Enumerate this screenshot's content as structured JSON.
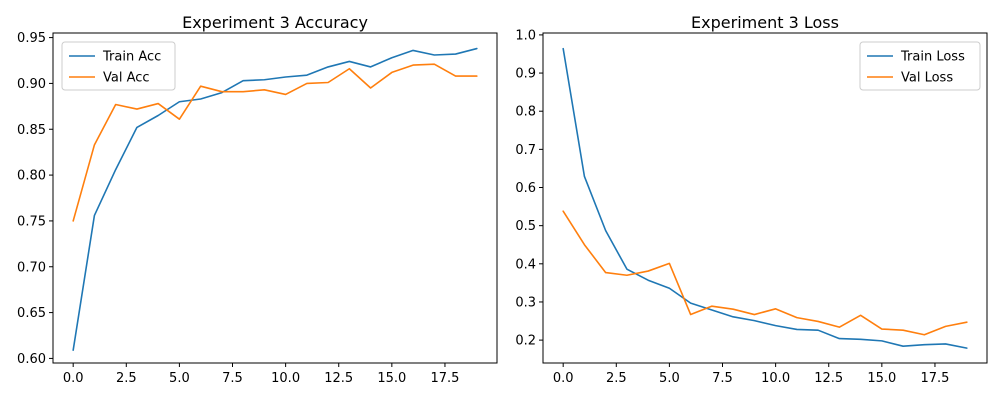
{
  "chart_data": [
    {
      "type": "line",
      "title": "Experiment 3 Accuracy",
      "xlabel": "",
      "ylabel": "",
      "x": [
        0,
        1,
        2,
        3,
        4,
        5,
        6,
        7,
        8,
        9,
        10,
        11,
        12,
        13,
        14,
        15,
        16,
        17,
        18,
        19
      ],
      "xlim": [
        -0.95,
        19.95
      ],
      "ylim": [
        0.595,
        0.955
      ],
      "xticks": [
        0,
        2.5,
        5,
        7.5,
        10,
        12.5,
        15,
        17.5
      ],
      "xtick_labels": [
        "0.0",
        "2.5",
        "5.0",
        "7.5",
        "10.0",
        "12.5",
        "15.0",
        "17.5"
      ],
      "yticks": [
        0.6,
        0.65,
        0.7,
        0.75,
        0.8,
        0.85,
        0.9,
        0.95
      ],
      "ytick_labels": [
        "0.60",
        "0.65",
        "0.70",
        "0.75",
        "0.80",
        "0.85",
        "0.90",
        "0.95"
      ],
      "grid": false,
      "legend_position": "top-left",
      "series": [
        {
          "name": "Train Acc",
          "color": "#1f77b4",
          "values": [
            0.609,
            0.756,
            0.806,
            0.852,
            0.865,
            0.88,
            0.883,
            0.89,
            0.903,
            0.904,
            0.907,
            0.909,
            0.918,
            0.924,
            0.918,
            0.928,
            0.936,
            0.931,
            0.932,
            0.938
          ]
        },
        {
          "name": "Val Acc",
          "color": "#ff7f0e",
          "values": [
            0.75,
            0.833,
            0.877,
            0.872,
            0.878,
            0.861,
            0.897,
            0.891,
            0.891,
            0.893,
            0.888,
            0.9,
            0.901,
            0.916,
            0.895,
            0.912,
            0.92,
            0.921,
            0.908,
            0.908
          ]
        }
      ]
    },
    {
      "type": "line",
      "title": "Experiment 3 Loss",
      "xlabel": "",
      "ylabel": "",
      "x": [
        0,
        1,
        2,
        3,
        4,
        5,
        6,
        7,
        8,
        9,
        10,
        11,
        12,
        13,
        14,
        15,
        16,
        17,
        18,
        19
      ],
      "xlim": [
        -0.95,
        19.95
      ],
      "ylim": [
        0.14,
        1.005
      ],
      "xticks": [
        0,
        2.5,
        5,
        7.5,
        10,
        12.5,
        15,
        17.5
      ],
      "xtick_labels": [
        "0.0",
        "2.5",
        "5.0",
        "7.5",
        "10.0",
        "12.5",
        "15.0",
        "17.5"
      ],
      "yticks": [
        0.2,
        0.3,
        0.4,
        0.5,
        0.6,
        0.7,
        0.8,
        0.9,
        1.0
      ],
      "ytick_labels": [
        "0.2",
        "0.3",
        "0.4",
        "0.5",
        "0.6",
        "0.7",
        "0.8",
        "0.9",
        "1.0"
      ],
      "grid": false,
      "legend_position": "top-right",
      "series": [
        {
          "name": "Train Loss",
          "color": "#1f77b4",
          "values": [
            0.964,
            0.629,
            0.487,
            0.386,
            0.357,
            0.336,
            0.297,
            0.279,
            0.261,
            0.251,
            0.238,
            0.228,
            0.226,
            0.204,
            0.202,
            0.198,
            0.184,
            0.188,
            0.19,
            0.179
          ]
        },
        {
          "name": "Val Loss",
          "color": "#ff7f0e",
          "values": [
            0.538,
            0.45,
            0.377,
            0.37,
            0.381,
            0.401,
            0.267,
            0.289,
            0.281,
            0.267,
            0.282,
            0.259,
            0.249,
            0.234,
            0.265,
            0.229,
            0.226,
            0.214,
            0.236,
            0.247
          ]
        }
      ]
    }
  ]
}
